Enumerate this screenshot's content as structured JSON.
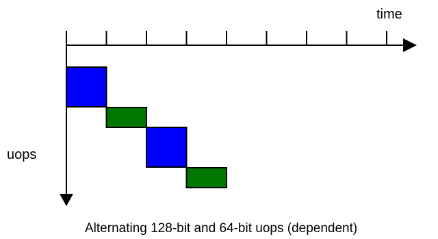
{
  "labels": {
    "time_axis": "time",
    "uops_axis": "uops",
    "caption": "Alternating 128-bit and 64-bit uops (dependent)"
  },
  "colors": {
    "uop_128": "#0000ff",
    "uop_64": "#007700",
    "axis": "#000000",
    "background": "#ffffff"
  },
  "timeline": {
    "tick_count": 9,
    "uops": [
      {
        "kind": "128-bit",
        "start": 0,
        "duration": 2,
        "color": "#0000ff"
      },
      {
        "kind": "64-bit",
        "start": 2,
        "duration": 2,
        "color": "#007700"
      },
      {
        "kind": "128-bit",
        "start": 4,
        "duration": 2,
        "color": "#0000ff"
      },
      {
        "kind": "64-bit",
        "start": 6,
        "duration": 2,
        "color": "#007700"
      }
    ]
  }
}
